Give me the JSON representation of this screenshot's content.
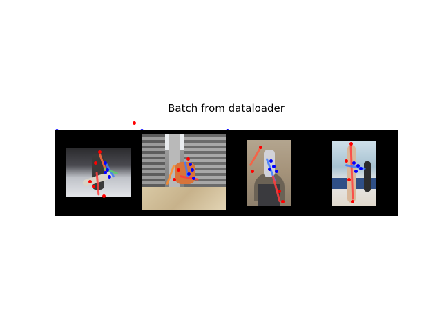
{
  "figure": {
    "title": "Batch from dataloader"
  },
  "images": [
    {
      "subject": "snowboarder-photo",
      "keypoint_colors": [
        "#ff0000",
        "#0000ff"
      ]
    },
    {
      "subject": "breakdancer-building-photo",
      "keypoint_colors": [
        "#ff0000",
        "#0000ff"
      ]
    },
    {
      "subject": "climber-facade-photo",
      "keypoint_colors": [
        "#ff0000",
        "#0000ff"
      ]
    },
    {
      "subject": "gymnast-split-photo",
      "keypoint_colors": [
        "#ff0000",
        "#0000ff"
      ]
    }
  ],
  "colors": {
    "background": "#ffffff",
    "strip": "#000000",
    "keypoint_right": "#ff0000",
    "keypoint_left": "#0000ff"
  }
}
